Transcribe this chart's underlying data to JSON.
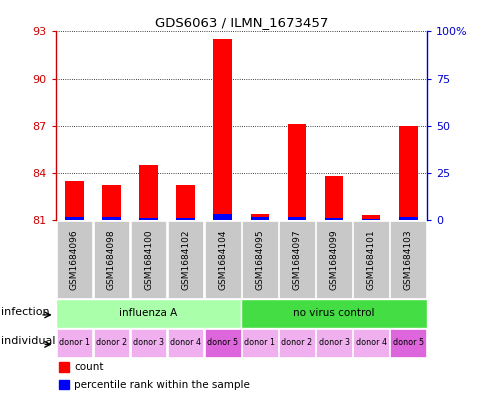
{
  "title": "GDS6063 / ILMN_1673457",
  "samples": [
    "GSM1684096",
    "GSM1684098",
    "GSM1684100",
    "GSM1684102",
    "GSM1684104",
    "GSM1684095",
    "GSM1684097",
    "GSM1684099",
    "GSM1684101",
    "GSM1684103"
  ],
  "red_values": [
    83.5,
    83.2,
    84.5,
    83.2,
    92.5,
    81.4,
    87.1,
    83.8,
    81.3,
    87.0
  ],
  "blue_values": [
    81.18,
    81.18,
    81.12,
    81.12,
    81.38,
    81.18,
    81.18,
    81.12,
    81.08,
    81.22
  ],
  "ylim_left": [
    81,
    93
  ],
  "yticks_left": [
    81,
    84,
    87,
    90,
    93
  ],
  "ylim_right": [
    0,
    100
  ],
  "yticks_right": [
    0,
    25,
    50,
    75,
    100
  ],
  "ytick_labels_right": [
    "0",
    "25",
    "50",
    "75",
    "100%"
  ],
  "bar_width": 0.5,
  "infection_labels": [
    "influenza A",
    "no virus control"
  ],
  "infection_colors": [
    "#AAFFAA",
    "#44DD44"
  ],
  "individual_labels": [
    "donor 1",
    "donor 2",
    "donor 3",
    "donor 4",
    "donor 5",
    "donor 1",
    "donor 2",
    "donor 3",
    "donor 4",
    "donor 5"
  ],
  "individual_colors": [
    "#F0B0F0",
    "#F0B0F0",
    "#F0B0F0",
    "#F0B0F0",
    "#DD66DD",
    "#F0B0F0",
    "#F0B0F0",
    "#F0B0F0",
    "#F0B0F0",
    "#DD66DD"
  ],
  "sample_bg_color": "#C8C8C8",
  "legend_red_label": "count",
  "legend_blue_label": "percentile rank within the sample",
  "infection_label": "infection",
  "individual_label": "individual",
  "left_axis_color": "#CC0000",
  "right_axis_color": "#0000CC",
  "background_color": "#FFFFFF"
}
